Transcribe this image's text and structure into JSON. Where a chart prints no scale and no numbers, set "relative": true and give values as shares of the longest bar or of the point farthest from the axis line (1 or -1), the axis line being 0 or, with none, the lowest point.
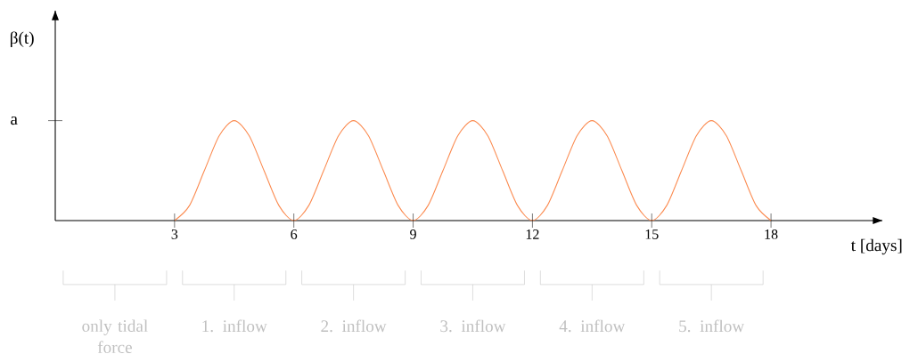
{
  "chart_data": {
    "type": "line",
    "relative": true,
    "ylabel": "β(t)",
    "xlabel": "t [days]",
    "xlim": [
      0,
      20.8
    ],
    "xticks": [
      3,
      6,
      9,
      12,
      15,
      18
    ],
    "series": [
      {
        "color": "#fb8a4f",
        "x": [
          3,
          3.375,
          3.75,
          4.125,
          4.5,
          4.875,
          5.25,
          5.625,
          6,
          6.375,
          6.75,
          7.125,
          7.5,
          7.875,
          8.25,
          8.625,
          9,
          9.375,
          9.75,
          10.125,
          10.5,
          10.875,
          11.25,
          11.625,
          12,
          12.375,
          12.75,
          13.125,
          13.5,
          13.875,
          14.25,
          14.625,
          15,
          15.375,
          15.75,
          16.125,
          16.5,
          16.875,
          17.25,
          17.625,
          18
        ],
        "values": [
          0,
          0.15,
          0.5,
          0.85,
          1,
          0.85,
          0.5,
          0.15,
          0,
          0.15,
          0.5,
          0.85,
          1,
          0.85,
          0.5,
          0.15,
          0,
          0.15,
          0.5,
          0.85,
          1,
          0.85,
          0.5,
          0.15,
          0,
          0.15,
          0.5,
          0.85,
          1,
          0.85,
          0.5,
          0.15,
          0,
          0.15,
          0.5,
          0.85,
          1,
          0.85,
          0.5,
          0.15,
          0
        ]
      }
    ],
    "annotations": [
      "a",
      "only tidal force",
      "1. inflow",
      "2. inflow",
      "3. inflow",
      "4. inflow",
      "5. inflow"
    ]
  }
}
